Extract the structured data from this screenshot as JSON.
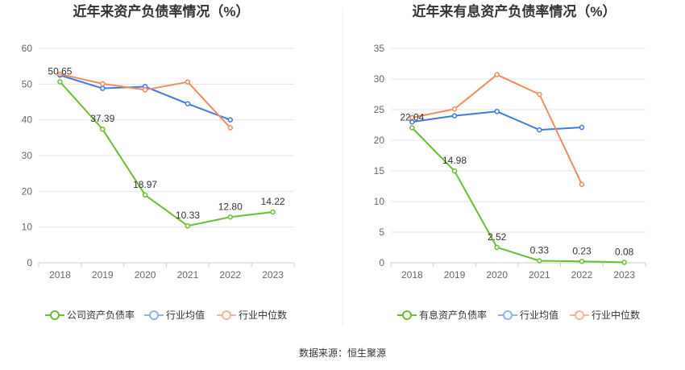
{
  "source_label": "数据来源：恒生聚源",
  "colors": {
    "green": "#6abf2f",
    "blue": "#3d7be0",
    "orange": "#f28b5e",
    "blue_legend": "#8fb4ec",
    "orange_legend": "#f6b498"
  },
  "chart_data": [
    {
      "type": "line",
      "title": "近年来资产负债率情况（%）",
      "categories": [
        "2018",
        "2019",
        "2020",
        "2021",
        "2022",
        "2023"
      ],
      "ylim": [
        0,
        60
      ],
      "yticks": [
        "0",
        "10",
        "20",
        "30",
        "40",
        "50",
        "60"
      ],
      "grid": true,
      "legend_position": "bottom",
      "series": [
        {
          "name": "公司资产负债率",
          "color": "#6abf2f",
          "legend_color": "#6abf2f",
          "values": [
            50.65,
            37.39,
            18.97,
            10.33,
            12.8,
            14.22
          ],
          "labels": [
            "50.65",
            "37.39",
            "18.97",
            "10.33",
            "12.80",
            "14.22"
          ]
        },
        {
          "name": "行业均值",
          "color": "#3d7be0",
          "legend_color": "#8fb4ec",
          "values": [
            52.5,
            48.8,
            49.3,
            44.5,
            40.0,
            null
          ]
        },
        {
          "name": "行业中位数",
          "color": "#f28b5e",
          "legend_color": "#f6b498",
          "values": [
            52.8,
            50.1,
            48.4,
            50.6,
            37.8,
            null
          ]
        }
      ]
    },
    {
      "type": "line",
      "title": "近年来有息资产负债率情况（%）",
      "categories": [
        "2018",
        "2019",
        "2020",
        "2021",
        "2022",
        "2023"
      ],
      "ylim": [
        0,
        35
      ],
      "yticks": [
        "0",
        "5",
        "10",
        "15",
        "20",
        "25",
        "30",
        "35"
      ],
      "grid": true,
      "legend_position": "bottom",
      "series": [
        {
          "name": "有息资产负债率",
          "color": "#6abf2f",
          "legend_color": "#6abf2f",
          "values": [
            22.04,
            14.98,
            2.52,
            0.33,
            0.23,
            0.08
          ],
          "labels": [
            "22.04",
            "14.98",
            "2.52",
            "0.33",
            "0.23",
            "0.08"
          ]
        },
        {
          "name": "行业均值",
          "color": "#3d7be0",
          "legend_color": "#8fb4ec",
          "values": [
            23.0,
            24.0,
            24.7,
            21.7,
            22.1,
            null
          ]
        },
        {
          "name": "行业中位数",
          "color": "#f28b5e",
          "legend_color": "#f6b498",
          "values": [
            23.7,
            25.1,
            30.7,
            27.5,
            12.8,
            null
          ]
        }
      ]
    }
  ]
}
